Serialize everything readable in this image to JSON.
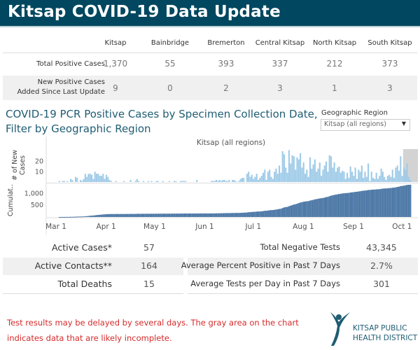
{
  "header": {
    "title": "Kitsap COVID-19 Data Update"
  },
  "regions_table": {
    "columns": [
      "Kitsap",
      "Bainbridge",
      "Bremerton",
      "Central Kitsap",
      "North Kitsap",
      "South Kitsap"
    ],
    "rows": [
      {
        "label": "Total Positive Cases",
        "values": [
          "1,370",
          "55",
          "393",
          "337",
          "212",
          "373"
        ]
      },
      {
        "label_line1": "New Positive Cases",
        "label_line2": "Added Since Last Update",
        "values": [
          "9",
          "0",
          "2",
          "3",
          "1",
          "3"
        ]
      }
    ]
  },
  "chart_section": {
    "title_line1": "COVID-19 PCR Positive Cases by Specimen Collection Date,",
    "title_line2": "Filter by Geographic Region",
    "filter_label": "Geographic Region",
    "filter_value": "Kitsap (all regions)"
  },
  "chart_data": {
    "type": "bar",
    "title": "Kitsap (all regions)",
    "start_date": "Mar 1",
    "x_tick_labels": [
      "Mar 1",
      "Apr 1",
      "May 1",
      "Jun 1",
      "Jul 1",
      "Aug 1",
      "Sep 1",
      "Oct 1"
    ],
    "x_tick_days": [
      0,
      31,
      61,
      92,
      122,
      153,
      184,
      214
    ],
    "incomplete_from_day": 219,
    "panels": [
      {
        "name": "new",
        "ylabel_line1": "# of New",
        "ylabel_line2": "Cases",
        "ylim": [
          0,
          32
        ],
        "ticks": [
          {
            "value": 10,
            "label": "10"
          },
          {
            "value": 20,
            "label": "20"
          }
        ],
        "color": "#9fcbe8"
      },
      {
        "name": "cumulative",
        "ylabel": "Cumulat..",
        "ylim": [
          0,
          1400
        ],
        "ticks": [
          {
            "value": 500,
            "label": "500"
          },
          {
            "value": 1000,
            "label": "1,000"
          }
        ],
        "color": "#4e79a7"
      }
    ],
    "daily_new_cases": [
      0,
      0,
      0,
      0,
      0,
      0,
      1,
      0,
      1,
      1,
      0,
      1,
      0,
      3,
      2,
      0,
      5,
      4,
      0,
      2,
      1,
      3,
      8,
      5,
      8,
      8,
      7,
      3,
      10,
      8,
      8,
      6,
      6,
      8,
      3,
      7,
      5,
      2,
      1,
      0,
      0,
      1,
      0,
      0,
      0,
      0,
      1,
      0,
      0,
      0,
      2,
      0,
      0,
      1,
      3,
      1,
      0,
      0,
      1,
      0,
      0,
      1,
      0,
      1,
      0,
      0,
      1,
      1,
      0,
      0,
      1,
      0,
      0,
      0,
      1,
      0,
      0,
      1,
      1,
      0,
      0,
      1,
      1,
      1,
      1,
      0,
      0,
      0,
      0,
      0,
      0,
      2,
      0,
      0,
      0,
      0,
      0,
      0,
      0,
      0,
      1,
      1,
      1,
      2,
      1,
      2,
      1,
      2,
      2,
      1,
      1,
      2,
      0,
      2,
      2,
      1,
      0,
      1,
      3,
      4,
      4,
      0,
      8,
      10,
      5,
      7,
      3,
      5,
      8,
      2,
      4,
      6,
      9,
      12,
      2,
      10,
      12,
      5,
      3,
      10,
      13,
      8,
      16,
      9,
      30,
      27,
      14,
      9,
      31,
      18,
      26,
      25,
      12,
      24,
      22,
      28,
      14,
      19,
      8,
      12,
      5,
      24,
      13,
      17,
      22,
      10,
      13,
      19,
      6,
      12,
      16,
      20,
      10,
      26,
      25,
      14,
      19,
      10,
      14,
      15,
      9,
      11,
      10,
      3,
      9,
      4,
      15,
      10,
      6,
      14,
      3,
      12,
      10,
      16,
      4,
      10,
      5,
      18,
      1,
      10,
      4,
      3,
      9,
      3,
      6,
      13,
      10,
      5,
      2,
      6,
      7,
      5,
      12,
      4,
      14,
      16,
      11,
      25,
      6,
      14,
      12,
      18,
      5,
      2
    ],
    "colors": {
      "new": "#9fcbe8",
      "cumulative": "#4e79a7",
      "incomplete": "#d3d3d3"
    }
  },
  "stats_left": [
    {
      "label": "Active Cases*",
      "value": "57"
    },
    {
      "label": "Active Contacts**",
      "value": "164"
    },
    {
      "label": "Total Deaths",
      "value": "15"
    }
  ],
  "stats_right": [
    {
      "label": "Total Negative Tests",
      "value": "43,345"
    },
    {
      "label": "Average Percent Positive in Past 7 Days",
      "value": "2.7%"
    },
    {
      "label": "Average Tests per Day in Past 7 Days",
      "value": "301"
    }
  ],
  "footer": {
    "note_line1": "Test results may be delayed by several days. The gray area on the chart",
    "note_line2": "indicates data that are likely incomplete.",
    "logo_line1": "KITSAP PUBLIC",
    "logo_line2": "HEALTH DISTRICT"
  },
  "colors": {
    "header": "#00475f",
    "title": "#1f5d73",
    "note": "#d62a2a"
  }
}
